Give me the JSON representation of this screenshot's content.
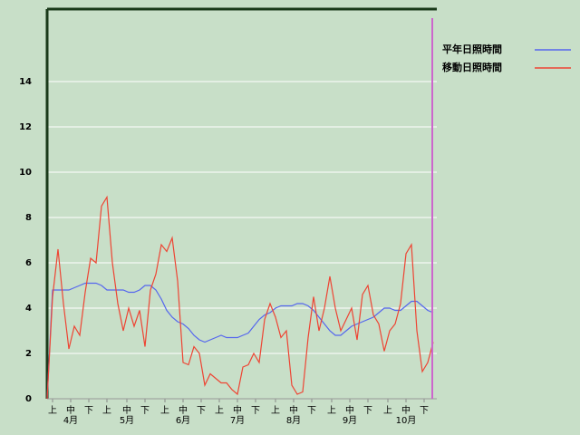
{
  "chart_data": {
    "type": "line",
    "x": [
      0,
      3,
      6,
      9,
      12,
      15,
      18,
      21,
      24,
      27,
      30,
      33,
      36,
      39,
      42,
      45,
      48,
      51,
      54,
      57,
      60,
      63,
      66,
      69,
      72,
      75,
      78,
      81,
      84,
      87,
      90,
      93,
      96,
      99,
      102,
      105,
      108,
      111,
      114,
      117,
      120,
      123,
      126,
      129,
      132,
      135,
      138,
      141,
      144,
      147,
      150,
      153,
      156,
      159,
      162,
      165,
      168,
      171,
      174,
      177,
      180,
      183,
      186,
      189,
      192,
      195,
      198,
      201,
      204,
      207,
      210,
      213
    ],
    "series": [
      {
        "name": "平年日照時間",
        "color": "#5566ee",
        "values": [
          0,
          4.8,
          4.8,
          4.8,
          4.8,
          4.9,
          5.0,
          5.1,
          5.1,
          5.1,
          5.0,
          4.8,
          4.8,
          4.8,
          4.8,
          4.7,
          4.7,
          4.8,
          5.0,
          5.0,
          4.8,
          4.4,
          3.9,
          3.6,
          3.4,
          3.3,
          3.1,
          2.8,
          2.6,
          2.5,
          2.6,
          2.7,
          2.8,
          2.7,
          2.7,
          2.7,
          2.8,
          2.9,
          3.2,
          3.5,
          3.7,
          3.8,
          4.0,
          4.1,
          4.1,
          4.1,
          4.2,
          4.2,
          4.1,
          3.9,
          3.6,
          3.3,
          3.0,
          2.8,
          2.8,
          3.0,
          3.2,
          3.3,
          3.4,
          3.5,
          3.6,
          3.8,
          4.0,
          4.0,
          3.9,
          3.9,
          4.1,
          4.3,
          4.3,
          4.1,
          3.9,
          3.8
        ]
      },
      {
        "name": "移動日照時間",
        "color": "#ee4433",
        "values": [
          0,
          4.5,
          6.6,
          4.2,
          2.2,
          3.2,
          2.8,
          4.7,
          6.2,
          6.0,
          8.5,
          8.9,
          6.0,
          4.2,
          3.0,
          4.0,
          3.2,
          3.9,
          2.3,
          4.8,
          5.5,
          6.8,
          6.5,
          7.1,
          5.2,
          1.6,
          1.5,
          2.3,
          2.0,
          0.6,
          1.1,
          0.9,
          0.7,
          0.7,
          0.4,
          0.2,
          1.4,
          1.5,
          2.0,
          1.6,
          3.5,
          4.2,
          3.6,
          2.7,
          3.0,
          0.6,
          0.2,
          0.3,
          2.7,
          4.5,
          3.0,
          4.0,
          5.4,
          4.0,
          3.0,
          3.5,
          4.0,
          2.6,
          4.6,
          5.0,
          3.7,
          3.3,
          2.1,
          3.0,
          3.3,
          4.2,
          6.4,
          6.8,
          3.0,
          1.2,
          1.6,
          2.5
        ]
      }
    ],
    "xlim": [
      0,
      215
    ],
    "xticks": [
      {
        "value": 3,
        "label": "上"
      },
      {
        "value": 13,
        "label": "中"
      },
      {
        "value": 23,
        "label": "下"
      },
      {
        "value": 33,
        "label": "上"
      },
      {
        "value": 44,
        "label": "中"
      },
      {
        "value": 54,
        "label": "下"
      },
      {
        "value": 65,
        "label": "上"
      },
      {
        "value": 75,
        "label": "中"
      },
      {
        "value": 85,
        "label": "下"
      },
      {
        "value": 95,
        "label": "上"
      },
      {
        "value": 105,
        "label": "中"
      },
      {
        "value": 115,
        "label": "下"
      },
      {
        "value": 126,
        "label": "上"
      },
      {
        "value": 136,
        "label": "中"
      },
      {
        "value": 146,
        "label": "下"
      },
      {
        "value": 157,
        "label": "上"
      },
      {
        "value": 167,
        "label": "中"
      },
      {
        "value": 177,
        "label": "下"
      },
      {
        "value": 188,
        "label": "上"
      },
      {
        "value": 198,
        "label": "中"
      },
      {
        "value": 208,
        "label": "下"
      }
    ],
    "month_labels": [
      {
        "value": 13,
        "label": "4月"
      },
      {
        "value": 44,
        "label": "5月"
      },
      {
        "value": 75,
        "label": "6月"
      },
      {
        "value": 105,
        "label": "7月"
      },
      {
        "value": 136,
        "label": "8月"
      },
      {
        "value": 167,
        "label": "9月"
      },
      {
        "value": 198,
        "label": "10月"
      }
    ],
    "ylim": [
      0,
      17.2
    ],
    "yticks": [
      0,
      2,
      4,
      6,
      8,
      10,
      12,
      14
    ],
    "grid": true,
    "legend": "top-right",
    "vline": {
      "x": 212.5,
      "color": "#cc66cc"
    }
  }
}
